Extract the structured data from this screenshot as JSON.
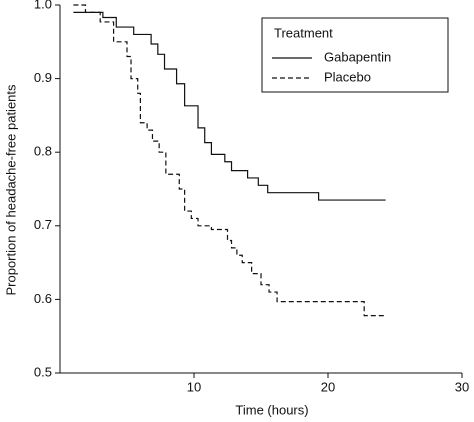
{
  "chart_data": {
    "type": "step",
    "xlabel": "Time (hours)",
    "ylabel": "Proportion of headache-free patients",
    "xlim": [
      0,
      30
    ],
    "ylim": [
      0.5,
      1
    ],
    "xticks": [
      10,
      20,
      30
    ],
    "yticks": [
      {
        "value": 1,
        "label": "1.0"
      },
      0.9,
      0.8,
      0.7,
      0.6,
      0.5
    ],
    "legend": {
      "title": "Treatment",
      "position": "upper right"
    },
    "series": [
      {
        "name": "Gabapentin",
        "color": "#111111",
        "linestyle": "solid",
        "x": [
          1,
          3.2,
          4.2,
          5.5,
          6.8,
          7.3,
          7.8,
          8.7,
          9.3,
          10.3,
          10.8,
          11.3,
          12.3,
          12.8,
          14,
          14.8,
          15.5,
          19.3,
          24.3
        ],
        "values": [
          0.99,
          0.983,
          0.97,
          0.96,
          0.947,
          0.933,
          0.913,
          0.893,
          0.863,
          0.833,
          0.813,
          0.797,
          0.787,
          0.775,
          0.765,
          0.755,
          0.745,
          0.735,
          0.735
        ]
      },
      {
        "name": "Placebo",
        "color": "#111111",
        "linestyle": "dashed",
        "x": [
          1,
          1.9,
          3,
          4,
          5,
          5.3,
          5.8,
          6,
          6.5,
          6.9,
          7.4,
          7.9,
          8.9,
          9.3,
          9.8,
          10.3,
          11.3,
          12.5,
          12.8,
          13.2,
          13.6,
          14.3,
          15,
          15.6,
          16.2,
          22.7,
          24.3
        ],
        "values": [
          1,
          0.99,
          0.977,
          0.95,
          0.93,
          0.9,
          0.88,
          0.84,
          0.83,
          0.815,
          0.8,
          0.77,
          0.75,
          0.72,
          0.71,
          0.7,
          0.695,
          0.68,
          0.67,
          0.66,
          0.65,
          0.635,
          0.62,
          0.61,
          0.597,
          0.578,
          0.578
        ]
      }
    ]
  }
}
